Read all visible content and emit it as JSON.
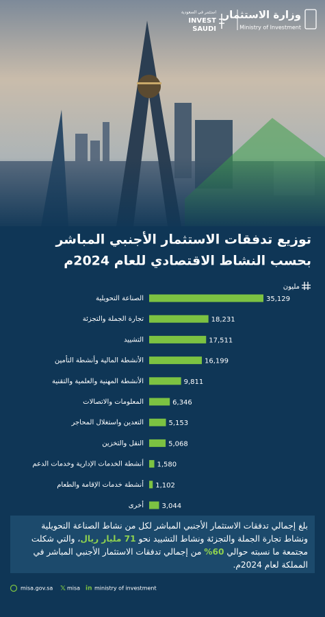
{
  "header": {
    "ministry_ar": "وزارة الاستثمار",
    "ministry_en": "Ministry of Investment",
    "invest_ar": "استثمر في السعودية",
    "invest_en_1": "INVEST",
    "invest_en_2": "SAUDI"
  },
  "chart_data": {
    "type": "hbar",
    "title": [
      "توزيع تدفقات الاستثمار الأجنبي المباشر",
      "بحسب النشاط الاقتصادي للعام 2024م"
    ],
    "unit": "مليون",
    "categories": [
      "الصناعة التحويلية",
      "تجارة الجملة والتجزئة",
      "التشييد",
      "الأنشطة المالية وأنشطة التأمين",
      "الأنشطة المهنية والعلمية والتقنية",
      "المعلومات والاتصالات",
      "التعدين واستغلال المحاجر",
      "النقل والتخزين",
      "أنشطة الخدمات الإدارية وخدمات الدعم",
      "أنشطة خدمات الإقامة والطعام",
      "أخرى"
    ],
    "values": [
      35129,
      18231,
      17511,
      16199,
      9811,
      6346,
      5153,
      5068,
      1580,
      1102,
      3044
    ],
    "value_labels": [
      "35,129",
      "18,231",
      "17,511",
      "16,199",
      "9,811",
      "6,346",
      "5,153",
      "5,068",
      "1,580",
      "1,102",
      "3,044"
    ],
    "color": "#7cc242"
  },
  "summary": [
    "بلغ إجمالي تدفقات الاستثمار الأجنبي المباشر لكل من نشاط الصناعة التحويلية ونشاط تجارة الجملة والتجزئة ونشاط التشييد نحو ",
    "71 مليار ريال",
    "، والتي شكلت مجتمعة ما نسبته حوالي ",
    "60%",
    " من إجمالي تدفقات الاستثمار الأجنبي المباشر في المملكة لعام 2024م."
  ],
  "footer": {
    "site": "misa.gov.sa",
    "x": "misa",
    "linkedin": "ministry of investment"
  }
}
